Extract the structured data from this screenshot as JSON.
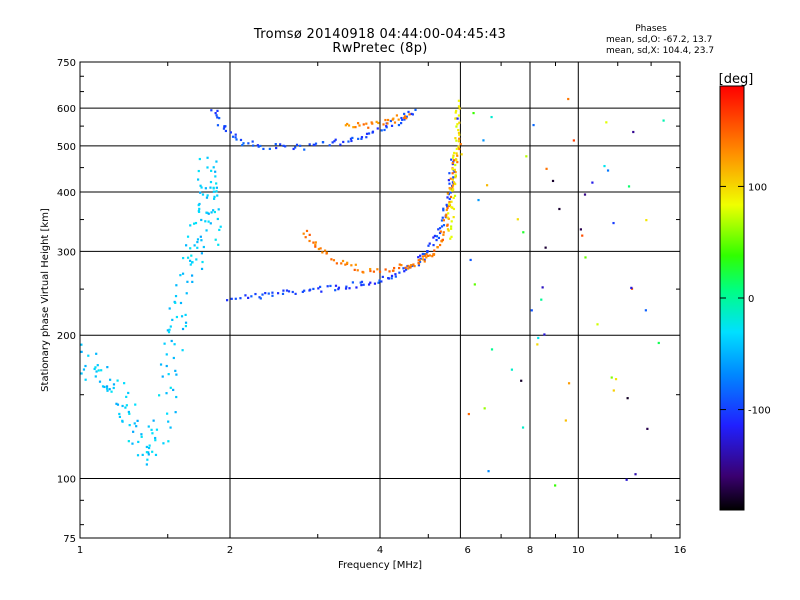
{
  "title_line1": "Tromsø 20140918 04:44:00-04:45:43",
  "title_line2": "RwPretec (8p)",
  "phases_label": "Phases",
  "stats_o": "mean, sd,O: -67.2, 13.7",
  "stats_x": "mean, sd,X: 104.4, 23.7",
  "colorbar": {
    "unit_label": "[deg]",
    "ticks": [
      {
        "value": 100,
        "label": "100"
      },
      {
        "value": 0,
        "label": "0"
      },
      {
        "value": -100,
        "label": "-100"
      }
    ],
    "range": [
      -190,
      190
    ]
  },
  "chart_data": {
    "type": "scatter",
    "title": "Tromsø 20140918 04:44:00-04:45:43",
    "subtitle": "RwPretec (8p)",
    "xlabel": "Frequency [MHz]",
    "ylabel": "Stationary phase Virtual Height [km]",
    "xscale": "log",
    "yscale": "log",
    "xlim": [
      1,
      16
    ],
    "ylim": [
      75,
      750
    ],
    "xticks": [
      {
        "value": 1,
        "label": "1"
      },
      {
        "value": 2,
        "label": "2"
      },
      {
        "value": 4,
        "label": "4"
      },
      {
        "value": 6,
        "label": "6"
      },
      {
        "value": 8,
        "label": "8"
      },
      {
        "value": 10,
        "label": "10"
      },
      {
        "value": 16,
        "label": "16"
      }
    ],
    "yticks": [
      {
        "value": 75,
        "label": "75"
      },
      {
        "value": 100,
        "label": "100"
      },
      {
        "value": 200,
        "label": "200"
      },
      {
        "value": 300,
        "label": "300"
      },
      {
        "value": 400,
        "label": "400"
      },
      {
        "value": 500,
        "label": "500"
      },
      {
        "value": 600,
        "label": "600"
      },
      {
        "value": 750,
        "label": "750"
      }
    ],
    "gridlines_x": [
      2,
      4,
      5.8,
      8,
      10
    ],
    "gridlines_y": [
      100,
      200,
      300,
      400,
      500,
      600
    ],
    "series": [
      {
        "name": "F-layer O-mode trace (blue)",
        "phase": -100,
        "points": [
          [
            2.0,
            240
          ],
          [
            2.3,
            242
          ],
          [
            2.6,
            246
          ],
          [
            3.0,
            250
          ],
          [
            3.4,
            253
          ],
          [
            3.8,
            258
          ],
          [
            4.2,
            266
          ],
          [
            4.6,
            278
          ],
          [
            4.9,
            292
          ],
          [
            5.1,
            310
          ],
          [
            5.3,
            340
          ],
          [
            5.45,
            380
          ],
          [
            5.55,
            420
          ],
          [
            5.6,
            470
          ]
        ]
      },
      {
        "name": "F-layer X-mode trace (orange)",
        "phase": 140,
        "points": [
          [
            2.8,
            330
          ],
          [
            3.0,
            305
          ],
          [
            3.3,
            285
          ],
          [
            3.7,
            275
          ],
          [
            4.2,
            275
          ],
          [
            4.6,
            280
          ],
          [
            4.9,
            288
          ],
          [
            5.1,
            298
          ],
          [
            5.3,
            318
          ],
          [
            5.45,
            355
          ],
          [
            5.55,
            400
          ],
          [
            5.65,
            450
          ],
          [
            5.75,
            520
          ]
        ]
      },
      {
        "name": "Multiple-hop trace (blue)",
        "phase": -95,
        "points": [
          [
            1.85,
            600
          ],
          [
            1.95,
            540
          ],
          [
            2.1,
            510
          ],
          [
            2.4,
            498
          ],
          [
            2.8,
            497
          ],
          [
            3.2,
            505
          ],
          [
            3.6,
            520
          ],
          [
            4.0,
            540
          ],
          [
            4.4,
            565
          ],
          [
            4.7,
            590
          ]
        ]
      },
      {
        "name": "Multiple-hop X trace (orange)",
        "phase": 135,
        "points": [
          [
            3.4,
            555
          ],
          [
            3.8,
            553
          ],
          [
            4.2,
            563
          ],
          [
            4.6,
            585
          ]
        ]
      },
      {
        "name": "Near-vertical X trace (yellow-green)",
        "phase": 90,
        "points": [
          [
            5.5,
            320
          ],
          [
            5.55,
            360
          ],
          [
            5.6,
            400
          ],
          [
            5.65,
            450
          ],
          [
            5.7,
            500
          ],
          [
            5.72,
            560
          ],
          [
            5.75,
            620
          ]
        ]
      },
      {
        "name": "Low-frequency scatter (cyan)",
        "phase": -40,
        "points": [
          [
            1.0,
            180
          ],
          [
            1.1,
            165
          ],
          [
            1.2,
            145
          ],
          [
            1.3,
            125
          ],
          [
            1.4,
            110
          ],
          [
            1.5,
            150
          ],
          [
            1.55,
            200
          ],
          [
            1.6,
            250
          ],
          [
            1.7,
            300
          ],
          [
            1.75,
            350
          ],
          [
            1.8,
            400
          ],
          [
            1.8,
            450
          ],
          [
            1.85,
            300
          ]
        ]
      }
    ]
  }
}
